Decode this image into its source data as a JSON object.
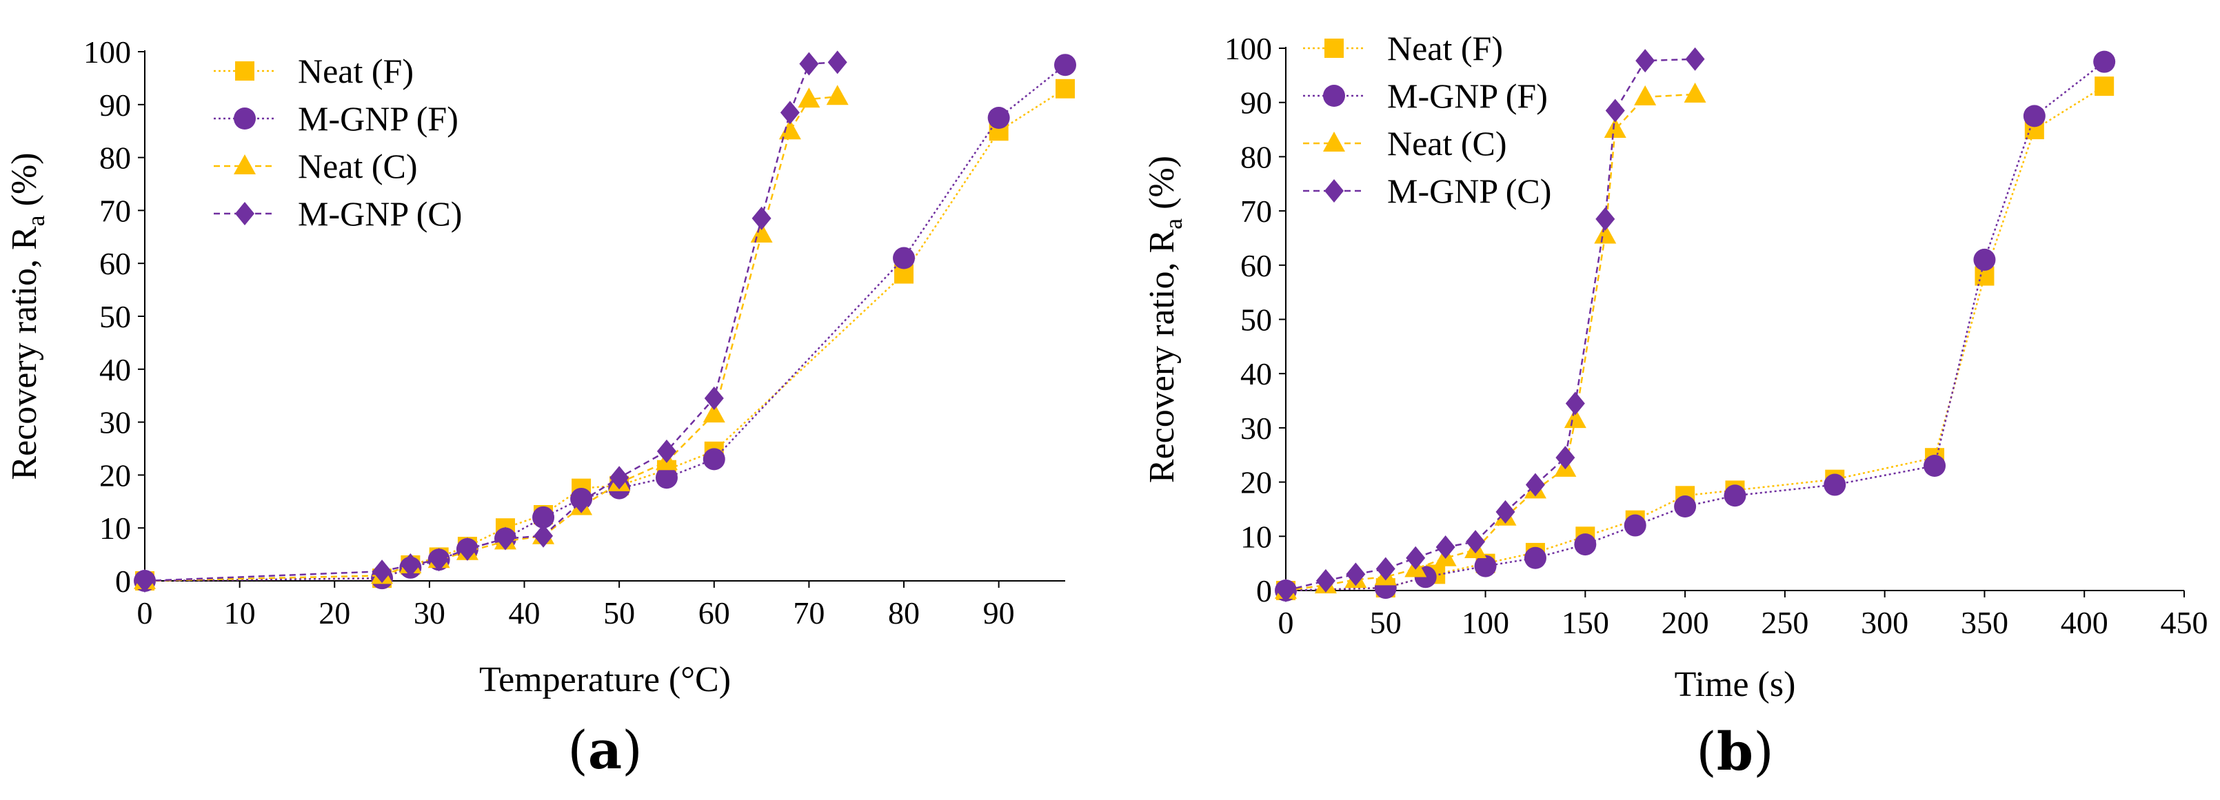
{
  "chart_data": [
    {
      "type": "line",
      "panel_label": "(a)",
      "panel_letter": "a",
      "title": "",
      "xlabel": "Temperature (°C)",
      "ylabel_main": "Recovery ratio, R",
      "ylabel_sub": "a",
      "ylabel_tail": " (%)",
      "xlim": [
        0,
        97
      ],
      "ylim": [
        0,
        100
      ],
      "xticks": [
        0,
        10,
        20,
        30,
        40,
        50,
        60,
        70,
        80,
        90
      ],
      "yticks": [
        0,
        10,
        20,
        30,
        40,
        50,
        60,
        70,
        80,
        90,
        100
      ],
      "grid": false,
      "legend_position": "top-left",
      "series": [
        {
          "name": "Neat (F)",
          "marker": "square",
          "color": "#FFC000",
          "dash": "dotted",
          "x": [
            0,
            25,
            28,
            31,
            34,
            38,
            42,
            46,
            50,
            55,
            60,
            80,
            90,
            97
          ],
          "y": [
            0,
            0.5,
            3,
            4.5,
            6.5,
            10,
            12.5,
            17.5,
            18,
            21,
            24.5,
            58,
            85,
            93
          ]
        },
        {
          "name": "M-GNP (F)",
          "marker": "circle",
          "color": "#7030A0",
          "dash": "dotted",
          "x": [
            0,
            25,
            28,
            31,
            34,
            38,
            42,
            46,
            50,
            55,
            60,
            80,
            90,
            97
          ],
          "y": [
            0,
            0.5,
            2.5,
            4,
            6,
            8,
            12,
            15.5,
            17.5,
            19.5,
            23,
            61,
            87.5,
            97.5
          ]
        },
        {
          "name": "Neat (C)",
          "marker": "triangle",
          "color": "#FFC000",
          "dash": "dashed",
          "x": [
            0,
            25,
            28,
            31,
            34,
            38,
            42,
            46,
            50,
            55,
            60,
            65,
            68,
            70,
            73
          ],
          "y": [
            0,
            1,
            3,
            4,
            5.5,
            7.5,
            8.5,
            14,
            18.5,
            22.5,
            31.5,
            65.5,
            85,
            91,
            91.5
          ]
        },
        {
          "name": "M-GNP (C)",
          "marker": "diamond",
          "color": "#7030A0",
          "dash": "dashed",
          "x": [
            0,
            25,
            28,
            31,
            34,
            38,
            42,
            46,
            50,
            55,
            60,
            65,
            68,
            70,
            73
          ],
          "y": [
            0,
            1.8,
            3,
            4,
            6,
            8,
            8.5,
            15,
            19.5,
            24.5,
            34.5,
            68.5,
            88.5,
            97.7,
            98
          ]
        }
      ]
    },
    {
      "type": "line",
      "panel_label": "(b)",
      "panel_letter": "b",
      "title": "",
      "xlabel": "Time (s)",
      "ylabel_main": "Recovery ratio, R",
      "ylabel_sub": "a",
      "ylabel_tail": " (%)",
      "xlim": [
        0,
        450
      ],
      "ylim": [
        0,
        100
      ],
      "xticks": [
        0,
        50,
        100,
        150,
        200,
        250,
        300,
        350,
        400,
        450
      ],
      "yticks": [
        0,
        10,
        20,
        30,
        40,
        50,
        60,
        70,
        80,
        90,
        100
      ],
      "grid": false,
      "legend_position": "top-left",
      "series": [
        {
          "name": "Neat (F)",
          "marker": "square",
          "color": "#FFC000",
          "dash": "dotted",
          "x": [
            0,
            50,
            75,
            100,
            125,
            150,
            175,
            200,
            225,
            275,
            325,
            350,
            375,
            410
          ],
          "y": [
            0,
            0.5,
            3,
            5,
            7,
            10,
            13,
            17.5,
            18.5,
            20.5,
            24.5,
            58,
            85,
            93
          ]
        },
        {
          "name": "M-GNP (F)",
          "marker": "circle",
          "color": "#7030A0",
          "dash": "dotted",
          "x": [
            0,
            50,
            70,
            100,
            125,
            150,
            175,
            200,
            225,
            275,
            325,
            350,
            375,
            410
          ],
          "y": [
            0,
            0.5,
            2.5,
            4.5,
            6,
            8.5,
            12,
            15.5,
            17.5,
            19.5,
            23,
            61,
            87.5,
            97.5
          ]
        },
        {
          "name": "Neat (C)",
          "marker": "triangle",
          "color": "#FFC000",
          "dash": "dashed",
          "x": [
            0,
            20,
            35,
            50,
            65,
            80,
            95,
            110,
            125,
            140,
            145,
            160,
            165,
            180,
            205
          ],
          "y": [
            0,
            1,
            2,
            2.5,
            4,
            6,
            7.5,
            13.5,
            18.5,
            22.5,
            31.5,
            65.5,
            85,
            91,
            91.5
          ]
        },
        {
          "name": "M-GNP (C)",
          "marker": "diamond",
          "color": "#7030A0",
          "dash": "dashed",
          "x": [
            0,
            20,
            35,
            50,
            65,
            80,
            95,
            110,
            125,
            140,
            145,
            160,
            165,
            180,
            205
          ],
          "y": [
            0,
            1.8,
            3,
            4,
            6,
            8,
            9,
            14.5,
            19.5,
            24.5,
            34.5,
            68.5,
            88.5,
            97.7,
            98
          ]
        }
      ]
    }
  ]
}
